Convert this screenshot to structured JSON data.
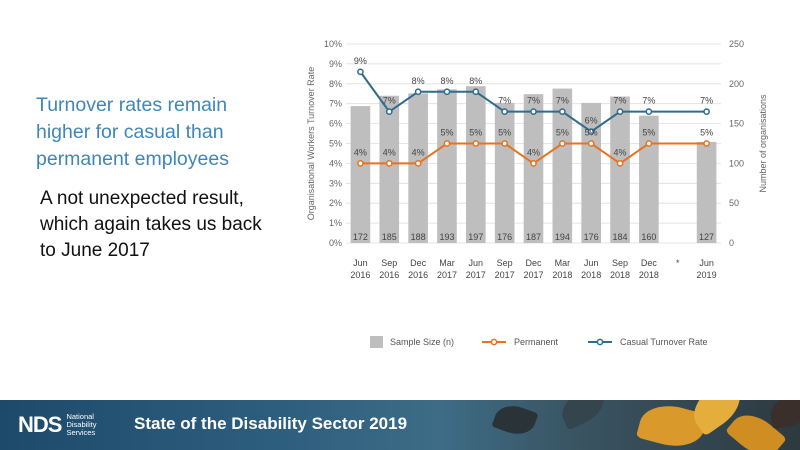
{
  "slide": {
    "heading": "Turnover rates remain higher for casual than permanent employees",
    "body": "A not unexpected result, which again takes us back to June 2017"
  },
  "footer": {
    "logo_mark": "NDS",
    "logo_line1": "National",
    "logo_line2": "Disability",
    "logo_line3": "Services",
    "title": "State of the Disability Sector 2019"
  },
  "colors": {
    "bar": "#bebebe",
    "permanent": "#e9711f",
    "casual": "#2f6b8f",
    "heading": "#3f86b8"
  },
  "chart_data": {
    "type": "bar",
    "ylabel": "Organisational Workers Turnover Rate",
    "y2label": "Number of organisations",
    "ylim": [
      0,
      10
    ],
    "y2lim": [
      0,
      250
    ],
    "yticks": [
      "0%",
      "1%",
      "2%",
      "3%",
      "4%",
      "5%",
      "6%",
      "7%",
      "8%",
      "9%",
      "10%"
    ],
    "y2ticks": [
      "0",
      "50",
      "100",
      "150",
      "200",
      "250"
    ],
    "categories": [
      [
        "Jun",
        "2016"
      ],
      [
        "Sep",
        "2016"
      ],
      [
        "Dec",
        "2016"
      ],
      [
        "Mar",
        "2017"
      ],
      [
        "Jun",
        "2017"
      ],
      [
        "Sep",
        "2017"
      ],
      [
        "Dec",
        "2017"
      ],
      [
        "Mar",
        "2018"
      ],
      [
        "Jun",
        "2018"
      ],
      [
        "Sep",
        "2018"
      ],
      [
        "Dec",
        "2018"
      ],
      [
        "*",
        ""
      ],
      [
        "Jun",
        "2019"
      ]
    ],
    "series": [
      {
        "name": "Sample Size (n)",
        "type": "bar",
        "axis": "right",
        "values": [
          172,
          185,
          188,
          193,
          197,
          176,
          187,
          194,
          176,
          184,
          160,
          null,
          127
        ]
      },
      {
        "name": "Permanent",
        "type": "line",
        "axis": "left",
        "values": [
          4.0,
          4.0,
          4.0,
          5.0,
          5.0,
          5.0,
          4.0,
          5.0,
          5.0,
          4.0,
          5.0,
          null,
          5.0
        ],
        "labels": [
          "4%",
          "4%",
          "4%",
          "5%",
          "5%",
          "5%",
          "4%",
          "5%",
          "5%",
          "4%",
          "5%",
          "",
          "5%"
        ]
      },
      {
        "name": "Casual Turnover Rate",
        "type": "line",
        "axis": "left",
        "values": [
          8.6,
          6.6,
          7.6,
          7.6,
          7.6,
          6.6,
          6.6,
          6.6,
          5.6,
          6.6,
          6.6,
          null,
          6.6
        ],
        "labels": [
          "9%",
          "7%",
          "8%",
          "8%",
          "8%",
          "7%",
          "7%",
          "7%",
          "6%",
          "7%",
          "7%",
          "",
          "7%"
        ]
      }
    ],
    "legend": "bottom",
    "grid": true
  }
}
